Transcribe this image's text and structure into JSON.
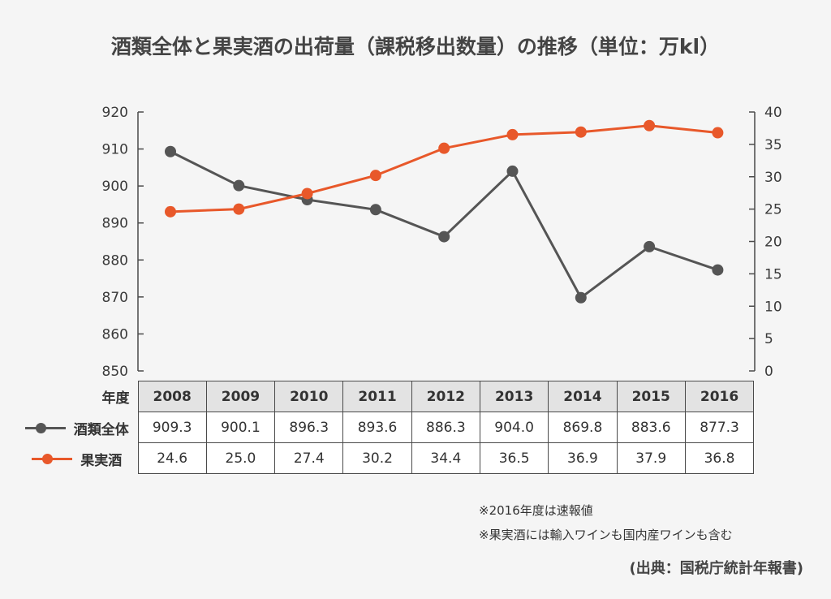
{
  "title": "酒類全体と果実酒の出荷量（課税移出数量）の推移（単位：万kl）",
  "colors": {
    "total": "#555555",
    "fruit": "#e8582a",
    "axis": "#4a4a4a"
  },
  "chart_data": {
    "type": "line",
    "title": "酒類全体と果実酒の出荷量（課税移出数量）の推移（単位：万kl）",
    "categories": [
      "2008",
      "2009",
      "2010",
      "2011",
      "2012",
      "2013",
      "2014",
      "2015",
      "2016"
    ],
    "series": [
      {
        "name": "酒類全体",
        "axis": "left",
        "values": [
          909.3,
          900.1,
          896.3,
          893.6,
          886.3,
          904.0,
          869.8,
          883.6,
          877.3
        ]
      },
      {
        "name": "果実酒",
        "axis": "right",
        "values": [
          24.6,
          25.0,
          27.4,
          30.2,
          34.4,
          36.5,
          36.9,
          37.9,
          36.8
        ]
      }
    ],
    "y_left": {
      "min": 850,
      "max": 920,
      "ticks": [
        "850",
        "860",
        "870",
        "880",
        "890",
        "900",
        "910",
        "920"
      ]
    },
    "y_right": {
      "min": 0,
      "max": 40,
      "ticks": [
        "0",
        "5",
        "10",
        "15",
        "20",
        "25",
        "30",
        "35",
        "40"
      ]
    },
    "grid": false,
    "legend_placement": "left of data table"
  },
  "table": {
    "year_header": "年度",
    "rows": [
      {
        "label": "酒類全体",
        "values": [
          "909.3",
          "900.1",
          "896.3",
          "893.6",
          "886.3",
          "904.0",
          "869.8",
          "883.6",
          "877.3"
        ]
      },
      {
        "label": "果実酒",
        "values": [
          "24.6",
          "25.0",
          "27.4",
          "30.2",
          "34.4",
          "36.5",
          "36.9",
          "37.9",
          "36.8"
        ]
      }
    ]
  },
  "notes": [
    "※2016年度は速報値",
    "※果実酒には輸入ワインも国内産ワインも含む"
  ],
  "source": "(出典：国税庁統計年報書)"
}
